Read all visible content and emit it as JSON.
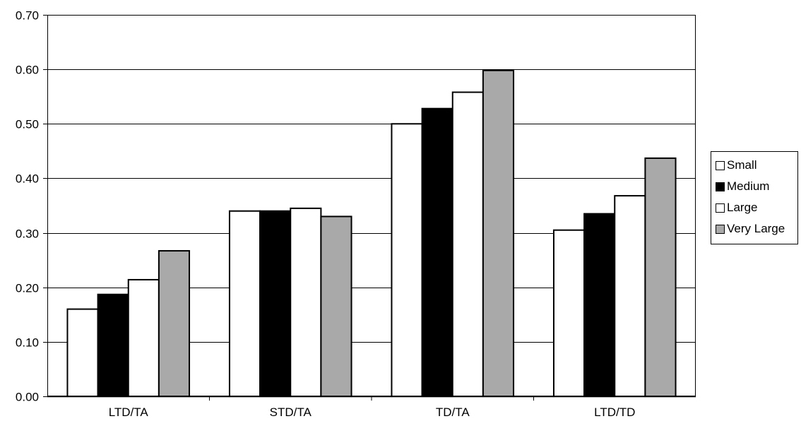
{
  "chart_data": {
    "type": "bar",
    "categories": [
      "LTD/TA",
      "STD/TA",
      "TD/TA",
      "LTD/TD"
    ],
    "series": [
      {
        "name": "Small",
        "values": [
          0.16,
          0.34,
          0.5,
          0.305
        ],
        "color": "#ffffff"
      },
      {
        "name": "Medium",
        "values": [
          0.187,
          0.34,
          0.528,
          0.335
        ],
        "color": "#000000"
      },
      {
        "name": "Large",
        "values": [
          0.214,
          0.345,
          0.558,
          0.368
        ],
        "color": "#ffffff"
      },
      {
        "name": "Very Large",
        "values": [
          0.267,
          0.33,
          0.598,
          0.437
        ],
        "color": "#a9a9a9"
      }
    ],
    "ylim": [
      0,
      0.7
    ],
    "yticks": [
      "0.00",
      "0.10",
      "0.20",
      "0.30",
      "0.40",
      "0.50",
      "0.60",
      "0.70"
    ],
    "grid": true,
    "legend": "right"
  }
}
